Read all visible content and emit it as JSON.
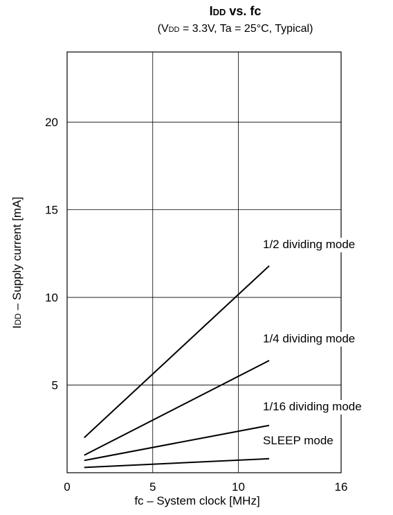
{
  "chart_data": {
    "type": "line",
    "title_main": "IDD vs.  fc",
    "title_main_prefix": "I",
    "title_main_sub": "DD",
    "title_main_suffix": " vs.  fc",
    "subtitle_prefix": "(V",
    "subtitle_sub": "DD",
    "subtitle_suffix": " = 3.3V, Ta = 25°C, Typical)",
    "xlabel": "fc – System clock  [MHz]",
    "ylabel_prefix": "I",
    "ylabel_sub": "DD",
    "ylabel_suffix": " – Supply current  [mA]",
    "xlim": [
      0,
      16
    ],
    "ylim": [
      0,
      24
    ],
    "x_ticks": [
      0,
      5,
      10,
      16
    ],
    "y_ticks": [
      5,
      10,
      15,
      20
    ],
    "x_grid": [
      5,
      10,
      16
    ],
    "y_grid": [
      5,
      10,
      15,
      20
    ],
    "grid": true,
    "series": [
      {
        "name": "1/2 dividing mode",
        "x": [
          1.0,
          11.8
        ],
        "y": [
          2.0,
          11.8
        ]
      },
      {
        "name": "1/4 dividing mode",
        "x": [
          1.0,
          11.8
        ],
        "y": [
          1.0,
          6.4
        ]
      },
      {
        "name": "1/16 dividing mode",
        "x": [
          1.0,
          11.8
        ],
        "y": [
          0.7,
          2.7
        ]
      },
      {
        "name": "SLEEP mode",
        "x": [
          1.0,
          11.8
        ],
        "y": [
          0.3,
          0.8
        ]
      }
    ]
  }
}
